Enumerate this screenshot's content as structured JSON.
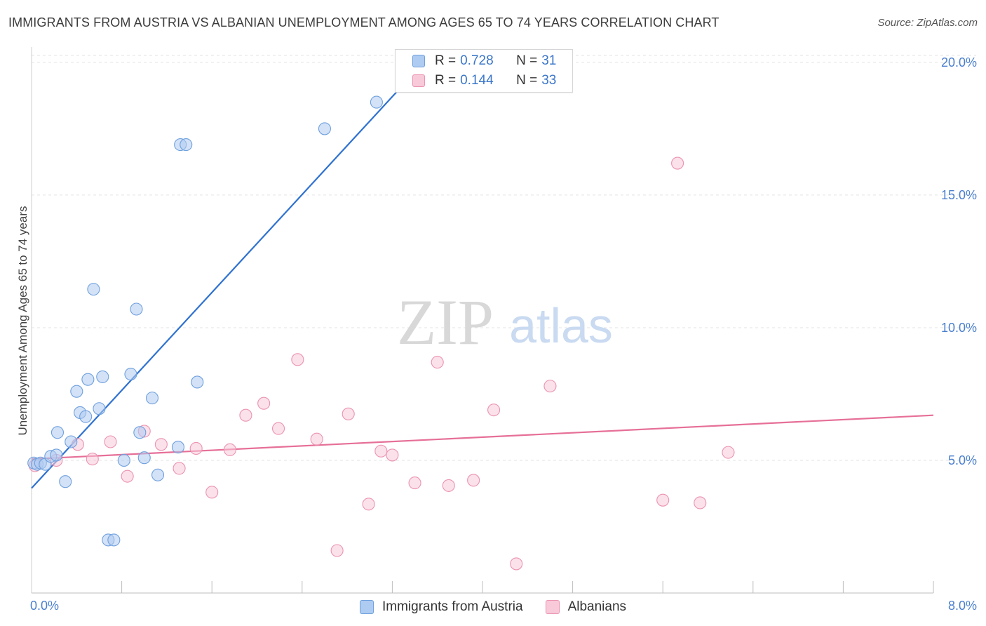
{
  "header": {
    "title": "IMMIGRANTS FROM AUSTRIA VS ALBANIAN UNEMPLOYMENT AMONG AGES 65 TO 74 YEARS CORRELATION CHART",
    "source": "Source: ZipAtlas.com"
  },
  "watermark": {
    "zip": "ZIP",
    "atlas": "atlas"
  },
  "legend": {
    "r_label": "R =",
    "n_label": "N =",
    "series": [
      {
        "r": "0.728",
        "n": "31"
      },
      {
        "r": "0.144",
        "n": "33"
      }
    ]
  },
  "bottom_legend": {
    "items": [
      "Immigrants from Austria",
      "Albanians"
    ]
  },
  "chart_data": {
    "type": "scatter",
    "title": "IMMIGRANTS FROM AUSTRIA VS ALBANIAN UNEMPLOYMENT AMONG AGES 65 TO 74 YEARS CORRELATION CHART",
    "xlabel": "",
    "ylabel": "Unemployment Among Ages 65 to 74 years",
    "xlim": [
      0,
      8
    ],
    "ylim": [
      0,
      20.5
    ],
    "x_tick_labels": [
      "0.0%",
      "8.0%"
    ],
    "y_ticks": [
      5,
      10,
      15,
      20
    ],
    "y_tick_labels": [
      "5.0%",
      "10.0%",
      "15.0%",
      "20.0%"
    ],
    "grid": true,
    "colors": {
      "austria": "#6fa0de",
      "austria_fill": "#aecbf1",
      "albanians": "#eb93b1",
      "albanians_fill": "#f8c9d8",
      "austria_line": "#2f72d0",
      "albanians_line": "#e66f98"
    },
    "series": [
      {
        "name": "Immigrants from Austria",
        "r": 0.728,
        "n": 31,
        "trend": {
          "x": [
            0.0,
            3.48
          ],
          "y": [
            3.95,
            20.0
          ]
        },
        "points": [
          {
            "x": 0.02,
            "y": 4.9
          },
          {
            "x": 0.05,
            "y": 4.85
          },
          {
            "x": 0.08,
            "y": 4.9
          },
          {
            "x": 0.12,
            "y": 4.85
          },
          {
            "x": 0.17,
            "y": 5.15
          },
          {
            "x": 0.22,
            "y": 5.2
          },
          {
            "x": 0.3,
            "y": 4.2
          },
          {
            "x": 0.23,
            "y": 6.05
          },
          {
            "x": 0.35,
            "y": 5.7
          },
          {
            "x": 0.4,
            "y": 7.6
          },
          {
            "x": 0.43,
            "y": 6.8
          },
          {
            "x": 0.48,
            "y": 6.65
          },
          {
            "x": 0.5,
            "y": 8.05
          },
          {
            "x": 0.55,
            "y": 11.45
          },
          {
            "x": 0.6,
            "y": 6.95
          },
          {
            "x": 0.63,
            "y": 8.15
          },
          {
            "x": 0.68,
            "y": 2.0
          },
          {
            "x": 0.73,
            "y": 2.0
          },
          {
            "x": 0.82,
            "y": 5.0
          },
          {
            "x": 0.88,
            "y": 8.25
          },
          {
            "x": 0.93,
            "y": 10.7
          },
          {
            "x": 0.96,
            "y": 6.05
          },
          {
            "x": 1.0,
            "y": 5.1
          },
          {
            "x": 1.07,
            "y": 7.35
          },
          {
            "x": 1.12,
            "y": 4.45
          },
          {
            "x": 1.3,
            "y": 5.5
          },
          {
            "x": 1.32,
            "y": 16.9
          },
          {
            "x": 1.37,
            "y": 16.9
          },
          {
            "x": 1.47,
            "y": 7.95
          },
          {
            "x": 2.6,
            "y": 17.5
          },
          {
            "x": 3.06,
            "y": 18.5
          }
        ]
      },
      {
        "name": "Albanians",
        "r": 0.144,
        "n": 33,
        "trend": {
          "x": [
            0.0,
            8.0
          ],
          "y": [
            5.05,
            6.7
          ]
        },
        "points": [
          {
            "x": 0.03,
            "y": 4.8
          },
          {
            "x": 0.22,
            "y": 5.0
          },
          {
            "x": 0.41,
            "y": 5.6
          },
          {
            "x": 0.54,
            "y": 5.05
          },
          {
            "x": 0.7,
            "y": 5.7
          },
          {
            "x": 0.85,
            "y": 4.4
          },
          {
            "x": 1.0,
            "y": 6.1
          },
          {
            "x": 1.15,
            "y": 5.6
          },
          {
            "x": 1.31,
            "y": 4.7
          },
          {
            "x": 1.46,
            "y": 5.45
          },
          {
            "x": 1.6,
            "y": 3.8
          },
          {
            "x": 1.76,
            "y": 5.4
          },
          {
            "x": 1.9,
            "y": 6.7
          },
          {
            "x": 2.06,
            "y": 7.15
          },
          {
            "x": 2.19,
            "y": 6.2
          },
          {
            "x": 2.36,
            "y": 8.8
          },
          {
            "x": 2.53,
            "y": 5.8
          },
          {
            "x": 2.71,
            "y": 1.6
          },
          {
            "x": 2.81,
            "y": 6.75
          },
          {
            "x": 2.99,
            "y": 3.35
          },
          {
            "x": 3.1,
            "y": 5.35
          },
          {
            "x": 3.2,
            "y": 5.2
          },
          {
            "x": 3.4,
            "y": 4.15
          },
          {
            "x": 3.6,
            "y": 8.7
          },
          {
            "x": 3.7,
            "y": 4.05
          },
          {
            "x": 3.92,
            "y": 4.25
          },
          {
            "x": 4.1,
            "y": 6.9
          },
          {
            "x": 4.3,
            "y": 1.1
          },
          {
            "x": 4.6,
            "y": 7.8
          },
          {
            "x": 5.6,
            "y": 3.5
          },
          {
            "x": 5.73,
            "y": 16.2
          },
          {
            "x": 5.93,
            "y": 3.4
          },
          {
            "x": 6.18,
            "y": 5.3
          }
        ]
      }
    ]
  }
}
